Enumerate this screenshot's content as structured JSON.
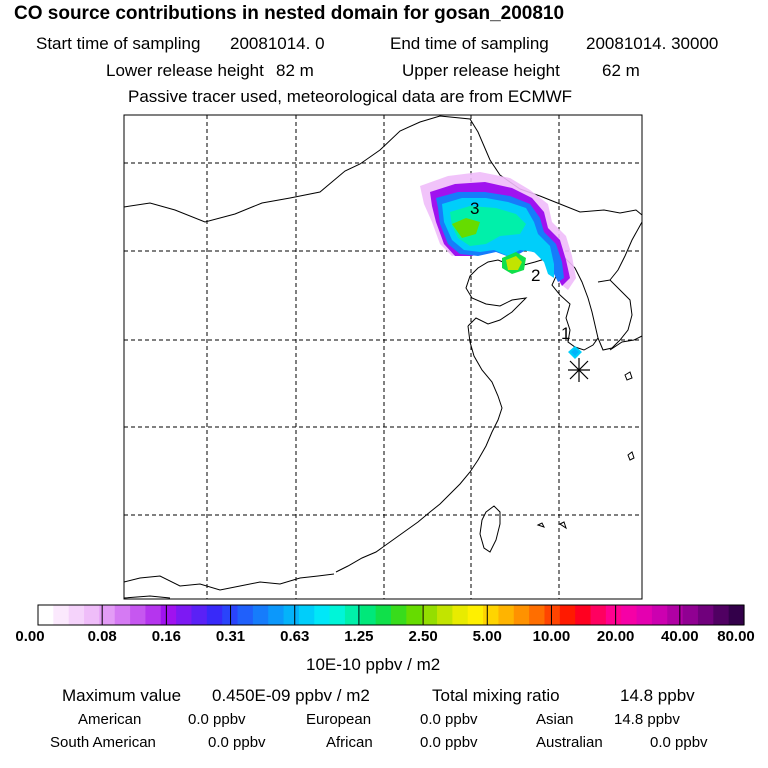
{
  "header": {
    "title": "CO  source contributions in nested domain for gosan_200810",
    "start_label": "Start time of sampling",
    "start_value": "20081014.     0",
    "end_label": "End time of sampling",
    "end_value": "20081014. 30000",
    "lower_label": "Lower release height",
    "lower_value": "82 m",
    "upper_label": "Upper release height",
    "upper_value": "62 m",
    "tracer_note": "Passive tracer used, meteorological data are from ECMWF"
  },
  "map": {
    "markers": [
      {
        "label": "1"
      },
      {
        "label": "2"
      },
      {
        "label": "3"
      }
    ],
    "station_marker_icon": "asterisk-icon"
  },
  "colorbar": {
    "labels": [
      "0.00",
      "0.08",
      "0.16",
      "0.31",
      "0.63",
      "1.25",
      "2.50",
      "5.00",
      "10.00",
      "20.00",
      "40.00",
      "80.00"
    ],
    "units": "10E-10 ppbv / m2",
    "colors": [
      "#ffffff",
      "#fbe9fd",
      "#f5d3fb",
      "#efbdf9",
      "#e39cf6",
      "#d57af3",
      "#c657f0",
      "#b535ee",
      "#a012ef",
      "#7d19f3",
      "#5a21f6",
      "#3829f9",
      "#2a44fb",
      "#2060fb",
      "#167cfb",
      "#0c98fb",
      "#04b3fa",
      "#00cefa",
      "#00e7f8",
      "#00f5d8",
      "#00f0aa",
      "#00e87a",
      "#10e04a",
      "#38dc1c",
      "#66dc00",
      "#94de00",
      "#c2e400",
      "#e8eb00",
      "#fff000",
      "#ffd400",
      "#ffb400",
      "#ff9200",
      "#ff6e00",
      "#ff4400",
      "#ff1a00",
      "#ff0020",
      "#ff0060",
      "#ff0090",
      "#f600a6",
      "#e400b0",
      "#cc00b0",
      "#b000a4",
      "#900092",
      "#70007c",
      "#500062",
      "#33004a"
    ]
  },
  "stats": {
    "max_label": "Maximum value",
    "max_value": "0.450E-09 ppbv / m2",
    "total_label": "Total mixing ratio",
    "total_value": "14.8 ppbv",
    "regions": [
      {
        "name": "American",
        "value": "0.0 ppbv"
      },
      {
        "name": "European",
        "value": "0.0 ppbv"
      },
      {
        "name": "Asian",
        "value": "14.8 ppbv"
      },
      {
        "name": "South American",
        "value": "0.0 ppbv"
      },
      {
        "name": "African",
        "value": "0.0 ppbv"
      },
      {
        "name": "Australian",
        "value": "0.0 ppbv"
      }
    ]
  }
}
